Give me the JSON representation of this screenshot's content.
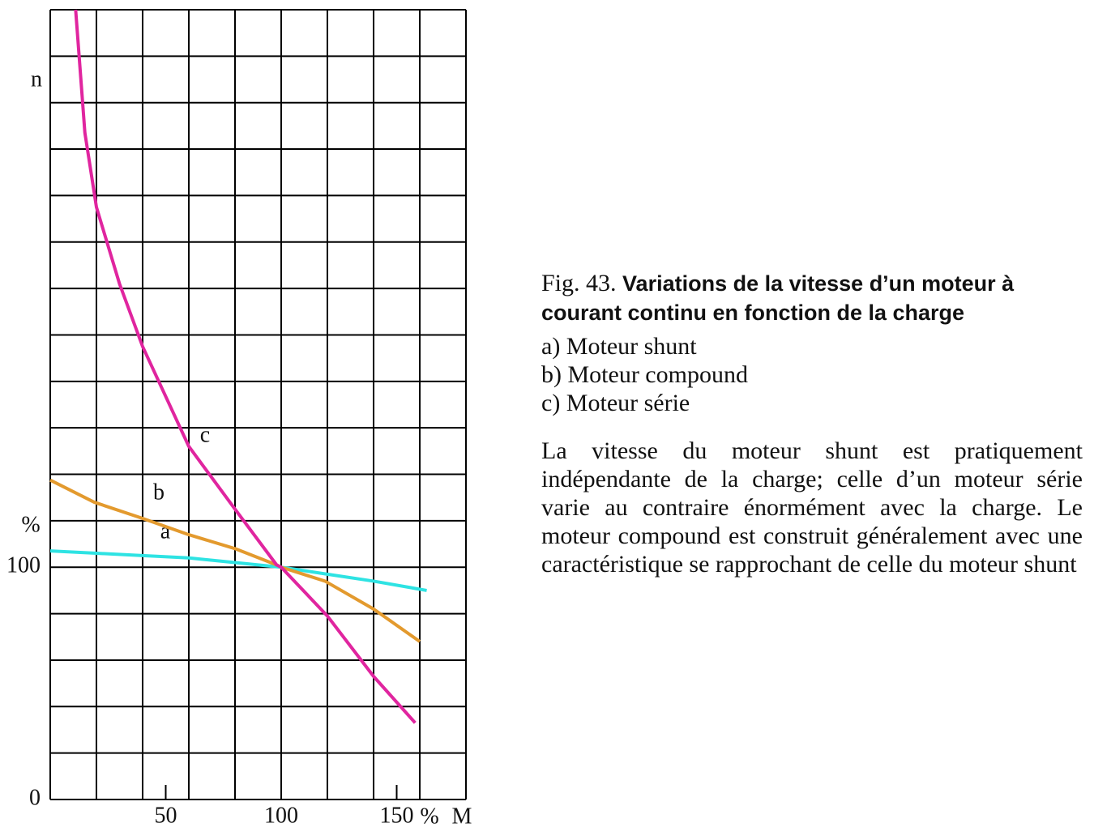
{
  "chart_data": {
    "type": "line",
    "y_label": "n",
    "y_unit": "%",
    "x_label": "M",
    "x_unit": "%",
    "xlim": [
      0,
      180
    ],
    "ylim": [
      0,
      340
    ],
    "xticks": [
      50,
      100,
      150
    ],
    "yticks": [
      0,
      100
    ],
    "xgrid": [
      0,
      20,
      40,
      60,
      80,
      100,
      120,
      140,
      160,
      180
    ],
    "ygrid": [
      0,
      20,
      40,
      60,
      80,
      100,
      120,
      140,
      160,
      180,
      200,
      220,
      240,
      260,
      280,
      300,
      320,
      340
    ],
    "grid": true,
    "series": [
      {
        "name": "a",
        "color": "#2ee3e3",
        "x": [
          0,
          20,
          40,
          60,
          80,
          100,
          120,
          140,
          163
        ],
        "values": [
          107,
          106,
          105,
          104,
          102,
          100,
          97,
          94,
          90
        ]
      },
      {
        "name": "b",
        "color": "#e39a2e",
        "x": [
          0,
          19,
          40,
          60,
          80,
          98,
          100,
          119,
          140,
          160
        ],
        "values": [
          137.5,
          128,
          121,
          114,
          108,
          101,
          100,
          94,
          82,
          68
        ]
      },
      {
        "name": "c",
        "color": "#e0259f",
        "x": [
          11,
          15,
          20,
          30,
          40,
          60,
          80,
          98,
          100,
          120,
          140,
          158
        ],
        "values": [
          340,
          287,
          255,
          222,
          195,
          152,
          125,
          101,
          100,
          79,
          53,
          33
        ]
      }
    ]
  },
  "caption": {
    "fig_number": "Fig. 43.",
    "title": "Variations de la vitesse d’un moteur à courant continu en fonction de la charge",
    "items": [
      "a) Moteur shunt",
      "b) Moteur compound",
      "c) Moteur série"
    ],
    "paragraph": "La vitesse du moteur shunt est pratiquement indépendante de la charge; celle d’un moteur série varie au contraire énormément avec la charge. Le moteur compound est construit généralement avec une caractéristique se rapprochant de celle du moteur shunt"
  }
}
